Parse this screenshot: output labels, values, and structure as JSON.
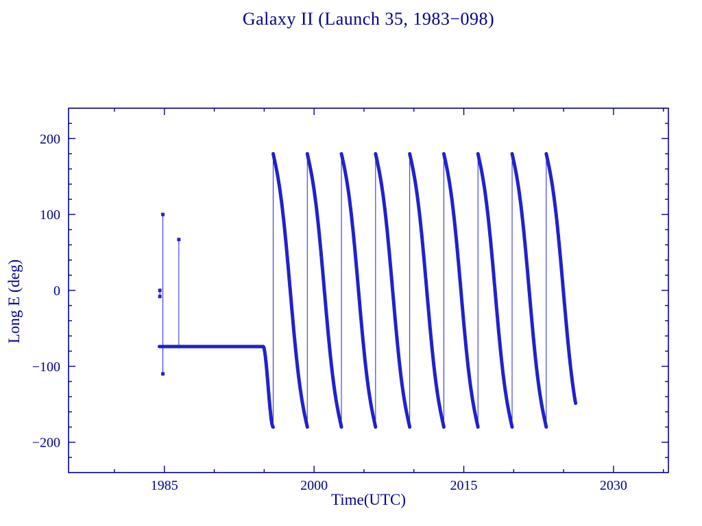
{
  "chart_data": {
    "type": "scatter-line",
    "title": "Galaxy II (Launch 35, 1983−098)",
    "xlabel": "Time(UTC)",
    "ylabel": "Long E (deg)",
    "xlim": [
      1975.4,
      2035.5
    ],
    "ylim": [
      -240,
      240
    ],
    "x_major_ticks": [
      1985,
      2000,
      2015,
      2030
    ],
    "y_major_ticks": [
      -200,
      -100,
      0,
      100,
      200
    ],
    "x_minor_step": 5,
    "y_minor_step": 20,
    "grid": false,
    "legend": null,
    "marker_style": "small-square",
    "axis_color": "#00008b",
    "data_color": "#2121cc",
    "early_maneuvers": [
      {
        "t": 1984.55,
        "points": [
          0,
          -8
        ]
      },
      {
        "t": 1984.85,
        "points": [
          100,
          -110
        ]
      },
      {
        "t": 1986.45,
        "points": [
          67
        ],
        "line_to": -74
      }
    ],
    "station_keeping": {
      "t_start": 1984.5,
      "t_end": 1994.9,
      "longitude_deg": -74
    },
    "disposal_drift": {
      "t_start": 1994.9,
      "lon_start": -74,
      "wrap_high": 180,
      "wrap_low": -180,
      "period_years": 3.42,
      "wrap_times": [
        1995.9,
        1999.32,
        2002.74,
        2006.16,
        2009.58,
        2013.0,
        2016.42,
        2019.84,
        2023.26
      ],
      "t_end": 2026.45,
      "lon_end": -150,
      "s_curve_amplitude_deg": 25
    }
  }
}
